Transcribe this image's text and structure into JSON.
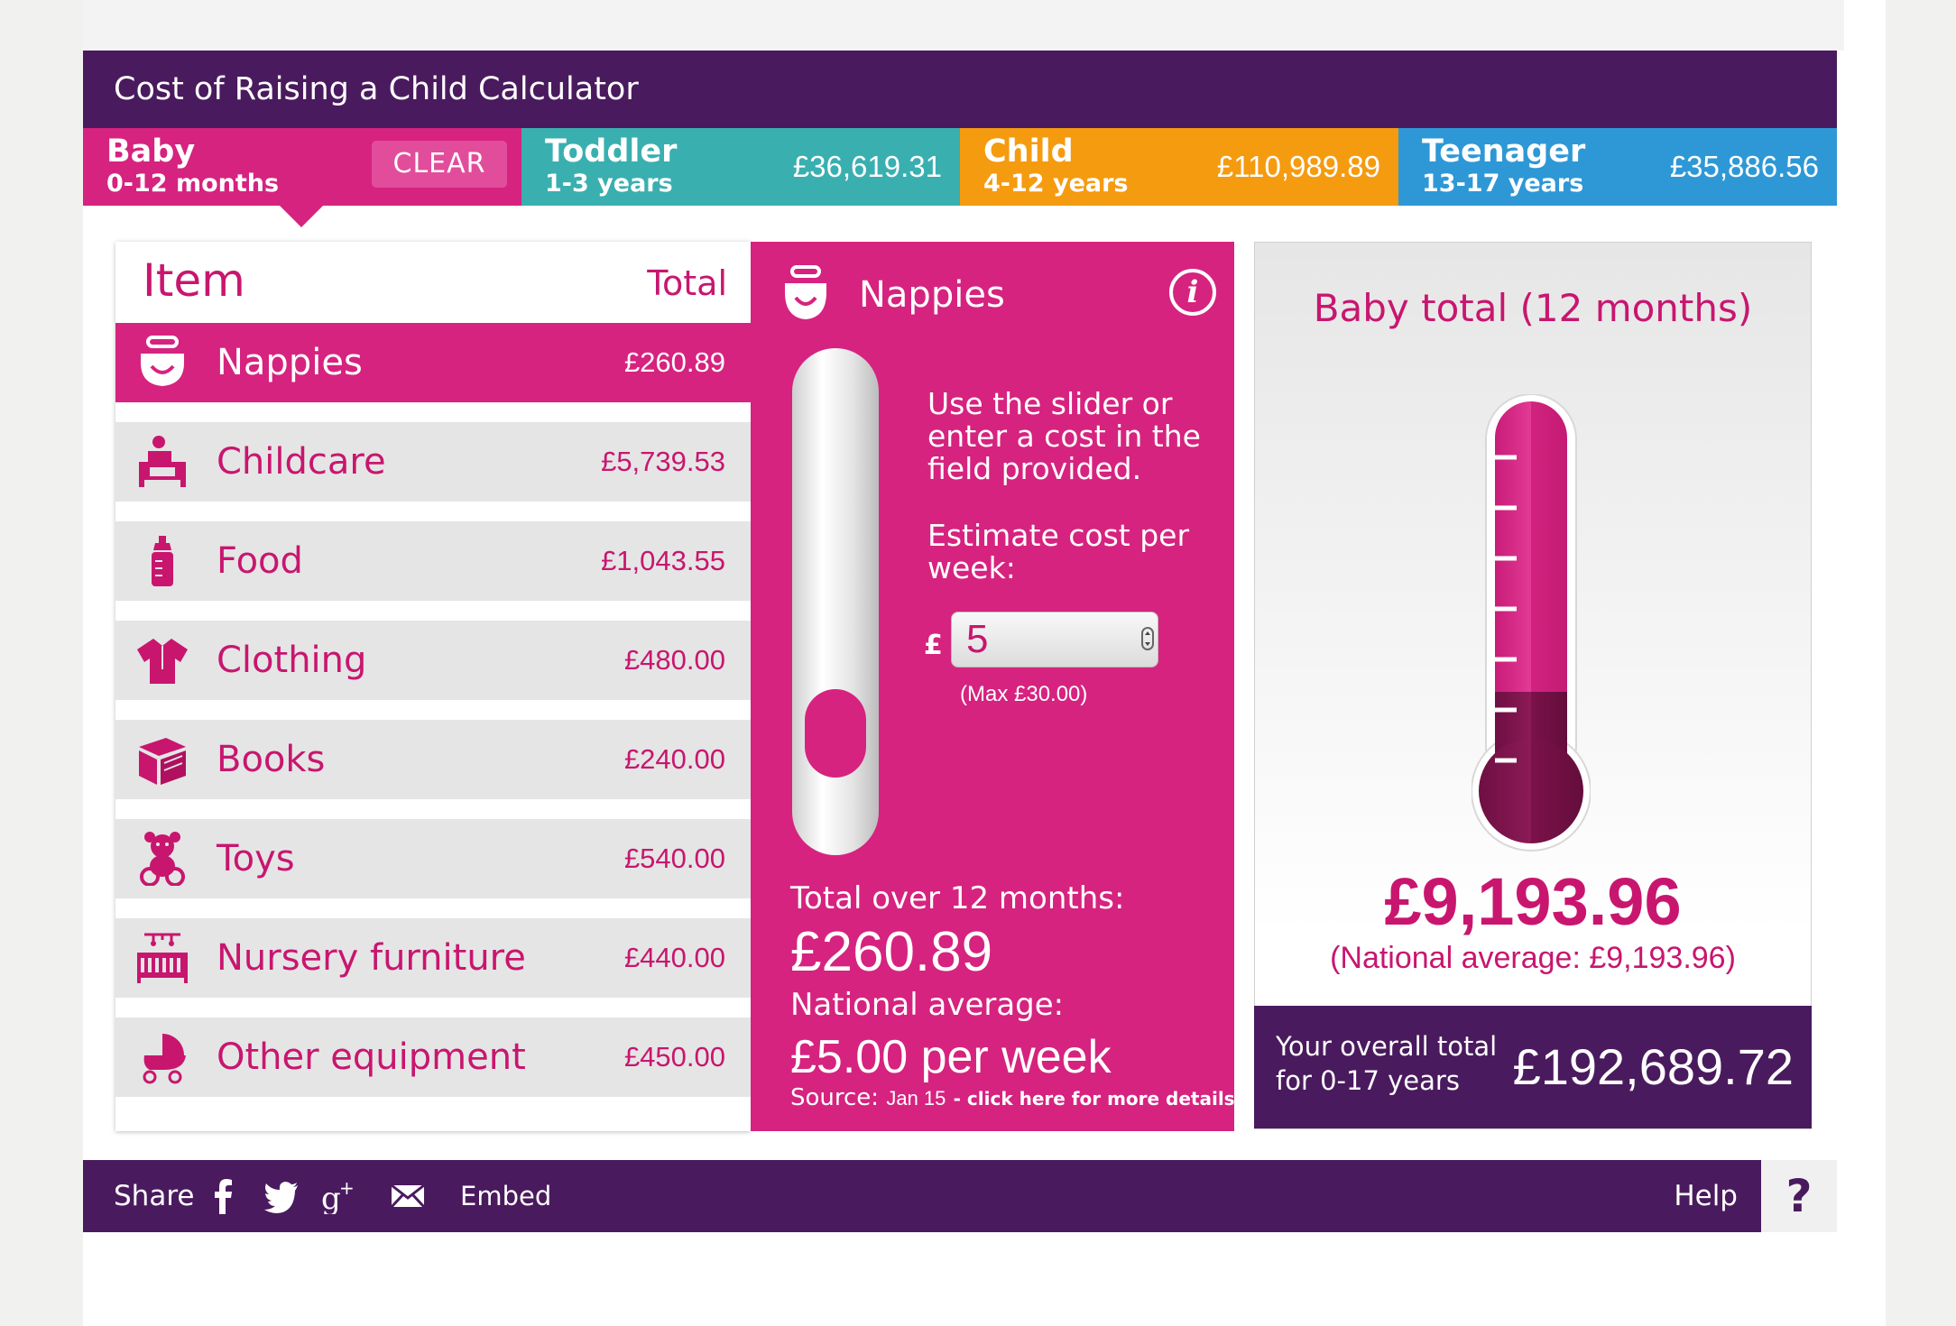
{
  "app": {
    "title": "Cost of Raising a Child Calculator"
  },
  "tabs": [
    {
      "name": "Baby",
      "age": "0-12 months",
      "amount": "",
      "color": "#d6237f"
    },
    {
      "name": "Toddler",
      "age": "1-3 years",
      "amount": "£36,619.31",
      "color": "#3aafb0"
    },
    {
      "name": "Child",
      "age": "4-12 years",
      "amount": "£110,989.89",
      "color": "#f59b10"
    },
    {
      "name": "Teenager",
      "age": "13-17 years",
      "amount": "£35,886.56",
      "color": "#2e98d6"
    }
  ],
  "clear_label": "CLEAR",
  "list": {
    "header_item": "Item",
    "header_total": "Total",
    "items": [
      {
        "name": "Nappies",
        "total": "£260.89",
        "icon": "nappy-icon",
        "selected": true
      },
      {
        "name": "Childcare",
        "total": "£5,739.53",
        "icon": "childcare-icon",
        "selected": false
      },
      {
        "name": "Food",
        "total": "£1,043.55",
        "icon": "bottle-icon",
        "selected": false
      },
      {
        "name": "Clothing",
        "total": "£480.00",
        "icon": "shirt-icon",
        "selected": false
      },
      {
        "name": "Books",
        "total": "£240.00",
        "icon": "book-icon",
        "selected": false
      },
      {
        "name": "Toys",
        "total": "£540.00",
        "icon": "teddy-icon",
        "selected": false
      },
      {
        "name": "Nursery furniture",
        "total": "£440.00",
        "icon": "cot-icon",
        "selected": false
      },
      {
        "name": "Other equipment",
        "total": "£450.00",
        "icon": "pram-icon",
        "selected": false
      }
    ]
  },
  "detail": {
    "title": "Nappies",
    "instructions": "Use the slider or enter a cost in the field provided.",
    "estimate_label": "Estimate cost per week:",
    "currency": "£",
    "cost_value": "5",
    "max_note": "(Max £30.00)",
    "slider_value": 5,
    "slider_max": 30,
    "total_label": "Total over 12 months:",
    "total_value": "£260.89",
    "national_label": "National average:",
    "national_value": "£5.00 per week",
    "source_label": "Source:",
    "source_date": "Jan 15",
    "source_link": " - click here for more details"
  },
  "summary": {
    "title": "Baby total (12 months)",
    "value": "£9,193.96",
    "national": "(National average: £9,193.96)",
    "overall_label": "Your overall total for 0-17 years",
    "overall_value": "£192,689.72"
  },
  "footer": {
    "share_label": "Share",
    "share_icons": [
      "facebook-icon",
      "twitter-icon",
      "google-plus-icon",
      "email-icon"
    ],
    "embed_label": "Embed",
    "help_label": "Help",
    "help_icon": "?"
  },
  "colors": {
    "purple": "#4a1a5e",
    "pink": "#d6237f",
    "dark_pink": "#7a0f47"
  }
}
